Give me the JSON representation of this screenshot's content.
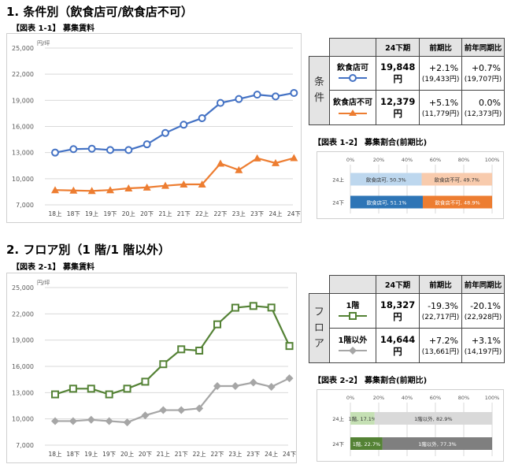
{
  "section1": {
    "title": "1. 条件別（飲食店可/飲食店不可）",
    "chart_label": "【図表 1-1】 募集賃料",
    "share_label": "【図表 1-2】 募集割合(前期比)"
  },
  "section2": {
    "title": "2. フロア別（1 階/1 階以外）",
    "chart_label": "【図表 2-1】 募集賃料",
    "share_label": "【図表 2-2】 募集割合(前期比)"
  },
  "table1": {
    "headers": [
      "24下期",
      "前期比",
      "前年同期比"
    ],
    "group": "条件",
    "rows": [
      {
        "label": "飲食店可",
        "value": "19,848円",
        "qoq": "+2.1%",
        "qoq_prev": "(19,433円)",
        "yoy": "+0.7%",
        "yoy_prev": "(19,707円)"
      },
      {
        "label": "飲食店不可",
        "value": "12,379円",
        "qoq": "+5.1%",
        "qoq_prev": "(11,779円)",
        "yoy": "0.0%",
        "yoy_prev": "(12,373円)"
      }
    ]
  },
  "table2": {
    "headers": [
      "24下期",
      "前期比",
      "前年同期比"
    ],
    "group": "フロア",
    "rows": [
      {
        "label": "1階",
        "value": "18,327円",
        "qoq": "-19.3%",
        "qoq_prev": "(22,717円)",
        "yoy": "-20.1%",
        "yoy_prev": "(22,928円)"
      },
      {
        "label": "1階以外",
        "value": "14,644円",
        "qoq": "+7.2%",
        "qoq_prev": "(13,661円)",
        "yoy": "+3.1%",
        "yoy_prev": "(14,197円)"
      }
    ]
  },
  "chart_data": [
    {
      "type": "line",
      "unit": "円/坪",
      "categories": [
        "18上",
        "18下",
        "19上",
        "19下",
        "20上",
        "20下",
        "21上",
        "21下",
        "22上",
        "22下",
        "23上",
        "23下",
        "24上",
        "24下"
      ],
      "yticks": [
        "25,000",
        "22,000",
        "19,000",
        "16,000",
        "13,000",
        "10,000",
        "7,000"
      ],
      "ylim": [
        7000,
        25000
      ],
      "grid": true,
      "series": [
        {
          "name": "飲食店可",
          "color": "#4472C4",
          "marker": "circle",
          "values": [
            13000,
            13400,
            13450,
            13300,
            13300,
            13950,
            15250,
            16200,
            16950,
            18700,
            19150,
            19650,
            19450,
            19848
          ]
        },
        {
          "name": "飲食店不可",
          "color": "#ED7D31",
          "marker": "triangle",
          "values": [
            8700,
            8650,
            8600,
            8700,
            8900,
            9000,
            9200,
            9350,
            9350,
            11750,
            11000,
            12350,
            11800,
            12379
          ]
        }
      ]
    },
    {
      "type": "line",
      "unit": "円/坪",
      "categories": [
        "18上",
        "18下",
        "19上",
        "19下",
        "20上",
        "20下",
        "21上",
        "21下",
        "22上",
        "22下",
        "23上",
        "23下",
        "24上",
        "24下"
      ],
      "yticks": [
        "25,000",
        "22,000",
        "19,000",
        "16,000",
        "13,000",
        "10,000",
        "7,000"
      ],
      "ylim": [
        7000,
        25000
      ],
      "grid": true,
      "series": [
        {
          "name": "1階",
          "color": "#548235",
          "marker": "square",
          "values": [
            12800,
            13450,
            13450,
            12800,
            13450,
            14250,
            16250,
            17950,
            17800,
            20800,
            22700,
            22900,
            22717,
            18327
          ]
        },
        {
          "name": "1階以外",
          "color": "#A6A6A6",
          "marker": "diamond",
          "values": [
            9750,
            9750,
            9900,
            9750,
            9600,
            10400,
            11000,
            11000,
            11200,
            13750,
            13750,
            14150,
            13661,
            14644
          ]
        }
      ]
    },
    {
      "type": "bar",
      "orientation": "horizontal-stacked",
      "xticks": [
        "0%",
        "20%",
        "40%",
        "60%",
        "80%",
        "100%"
      ],
      "categories": [
        "24上",
        "24下"
      ],
      "series": [
        {
          "name": "飲食店可",
          "values": [
            50.3,
            51.1
          ],
          "colors": [
            "#BDD7EE",
            "#2E75B6"
          ],
          "labels": [
            "飲食店可, 50.3%",
            "飲食店可, 51.1%"
          ]
        },
        {
          "name": "飲食店不可",
          "values": [
            49.7,
            48.9
          ],
          "colors": [
            "#F8CBAD",
            "#ED7D31"
          ],
          "labels": [
            "飲食店不可, 49.7%",
            "飲食店不可, 48.9%"
          ]
        }
      ]
    },
    {
      "type": "bar",
      "orientation": "horizontal-stacked",
      "xticks": [
        "0%",
        "20%",
        "40%",
        "60%",
        "80%",
        "100%"
      ],
      "categories": [
        "24上",
        "24下"
      ],
      "series": [
        {
          "name": "1階",
          "values": [
            17.1,
            22.7
          ],
          "colors": [
            "#C5E0B4",
            "#548235"
          ],
          "labels": [
            "1階, 17.1%",
            "1階, 22.7%"
          ]
        },
        {
          "name": "1階以外",
          "values": [
            82.9,
            77.3
          ],
          "colors": [
            "#D9D9D9",
            "#7F7F7F"
          ],
          "labels": [
            "1階以外, 82.9%",
            "1階以外, 77.3%"
          ]
        }
      ]
    }
  ]
}
